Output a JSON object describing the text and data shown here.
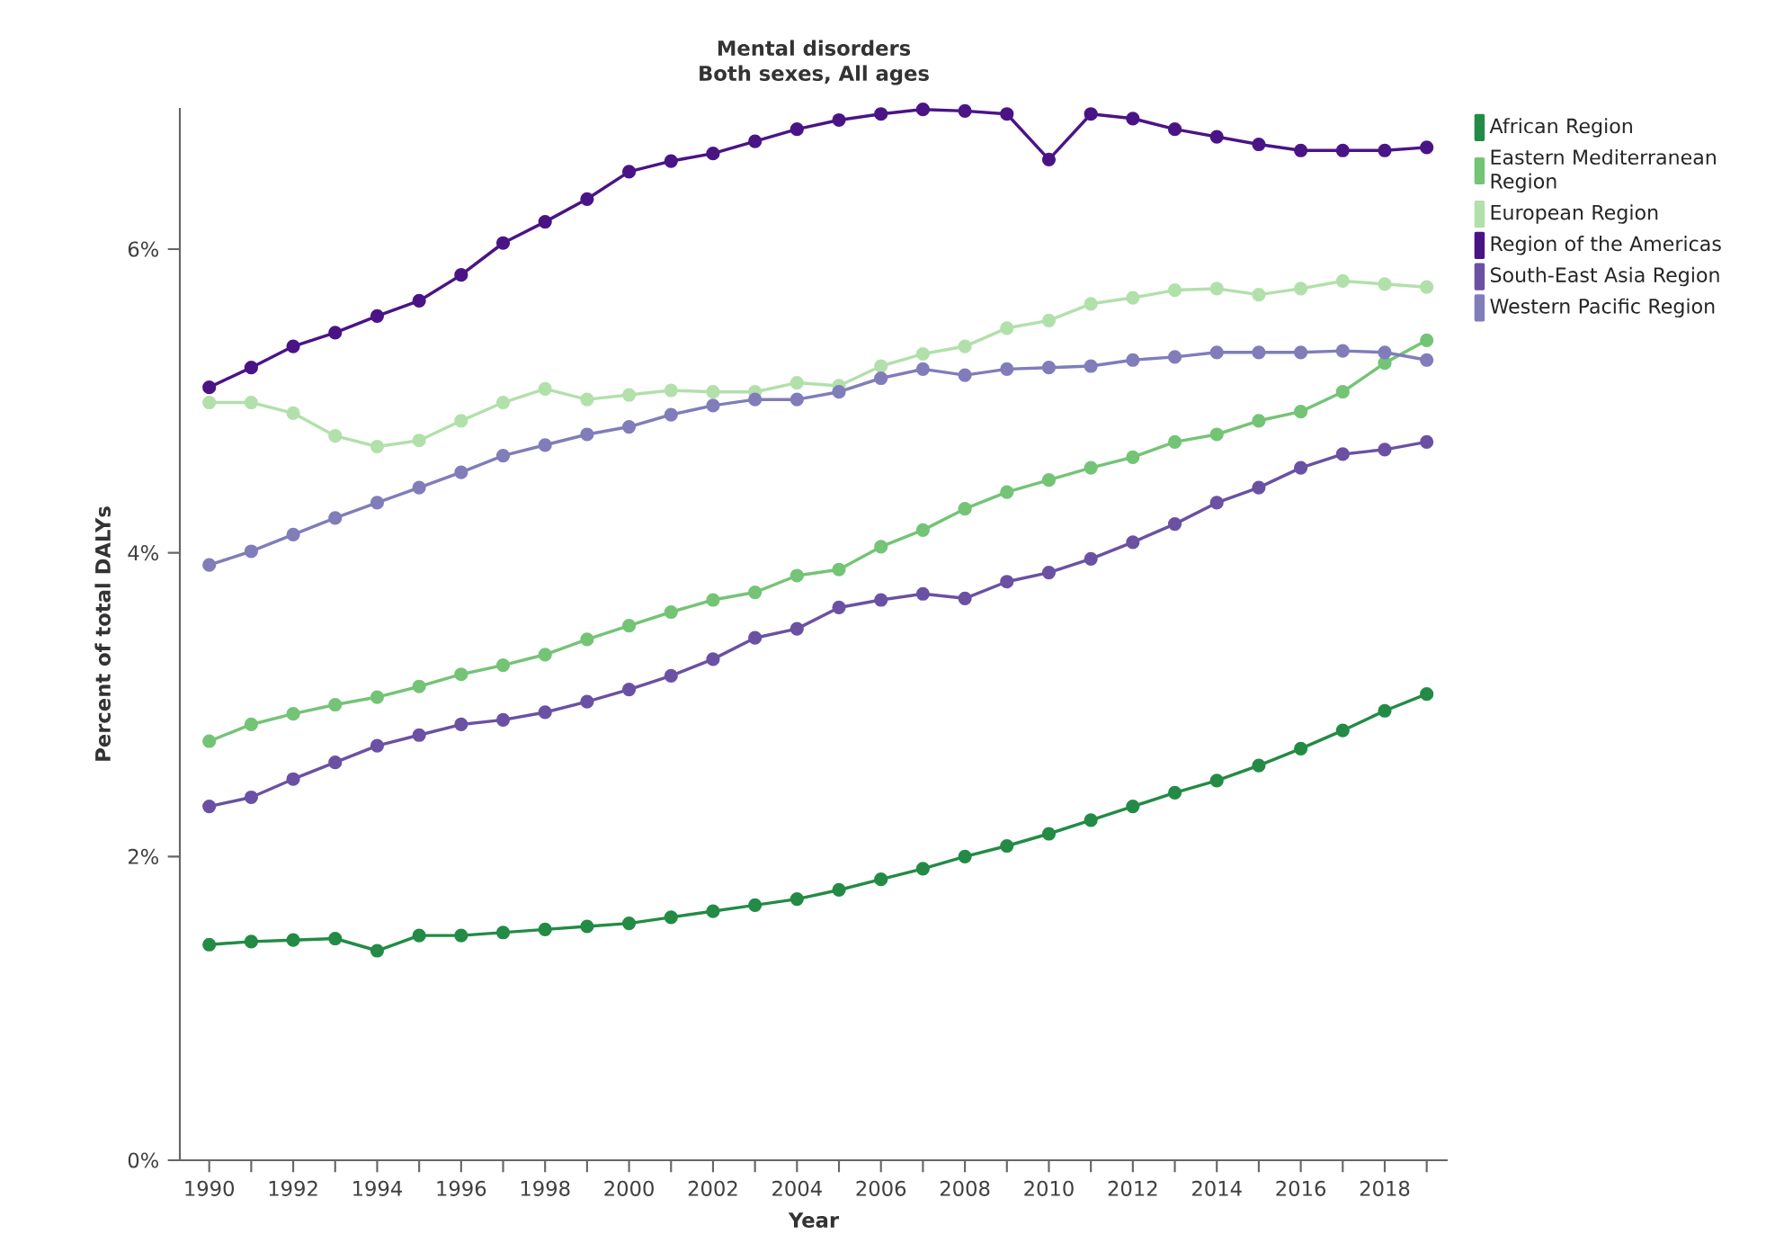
{
  "chart_data": {
    "type": "line",
    "title": "Mental disorders",
    "subtitle": "Both sexes, All ages",
    "xlabel": "Year",
    "ylabel": "Percent of total DALYs",
    "x": [
      1990,
      1991,
      1992,
      1993,
      1994,
      1995,
      1996,
      1997,
      1998,
      1999,
      2000,
      2001,
      2002,
      2003,
      2004,
      2005,
      2006,
      2007,
      2008,
      2009,
      2010,
      2011,
      2012,
      2013,
      2014,
      2015,
      2016,
      2017,
      2018,
      2019
    ],
    "series": [
      {
        "name": "African Region",
        "color": "#238b45",
        "values": [
          1.42,
          1.44,
          1.45,
          1.46,
          1.38,
          1.48,
          1.48,
          1.5,
          1.52,
          1.54,
          1.56,
          1.6,
          1.64,
          1.68,
          1.72,
          1.78,
          1.85,
          1.92,
          2.0,
          2.07,
          2.15,
          2.24,
          2.33,
          2.42,
          2.5,
          2.6,
          2.71,
          2.83,
          2.96,
          3.07
        ]
      },
      {
        "name": "Eastern Mediterranean Region",
        "color": "#74c476",
        "values": [
          2.76,
          2.87,
          2.94,
          3.0,
          3.05,
          3.12,
          3.2,
          3.26,
          3.33,
          3.43,
          3.52,
          3.61,
          3.69,
          3.74,
          3.85,
          3.89,
          4.04,
          4.15,
          4.29,
          4.4,
          4.48,
          4.56,
          4.63,
          4.73,
          4.78,
          4.87,
          4.93,
          5.06,
          5.25,
          5.4
        ]
      },
      {
        "name": "European Region",
        "color": "#b2e0ab",
        "values": [
          4.99,
          4.99,
          4.92,
          4.77,
          4.7,
          4.74,
          4.87,
          4.99,
          5.08,
          5.01,
          5.04,
          5.07,
          5.06,
          5.06,
          5.12,
          5.1,
          5.23,
          5.31,
          5.36,
          5.48,
          5.53,
          5.64,
          5.68,
          5.73,
          5.74,
          5.7,
          5.74,
          5.79,
          5.77,
          5.75
        ]
      },
      {
        "name": "Region of the Americas",
        "color": "#4a1486",
        "values": [
          5.09,
          5.22,
          5.36,
          5.45,
          5.56,
          5.66,
          5.83,
          6.04,
          6.18,
          6.33,
          6.51,
          6.58,
          6.63,
          6.71,
          6.79,
          6.85,
          6.89,
          6.92,
          6.91,
          6.89,
          6.59,
          6.89,
          6.86,
          6.79,
          6.74,
          6.69,
          6.65,
          6.65,
          6.65,
          6.67
        ]
      },
      {
        "name": "South-East Asia Region",
        "color": "#6a51a3",
        "values": [
          2.33,
          2.39,
          2.51,
          2.62,
          2.73,
          2.8,
          2.87,
          2.9,
          2.95,
          3.02,
          3.1,
          3.19,
          3.3,
          3.44,
          3.5,
          3.64,
          3.69,
          3.73,
          3.7,
          3.81,
          3.87,
          3.96,
          4.07,
          4.19,
          4.33,
          4.43,
          4.56,
          4.65,
          4.68,
          4.73
        ]
      },
      {
        "name": "Western Pacific Region",
        "color": "#807dba",
        "values": [
          3.92,
          4.01,
          4.12,
          4.23,
          4.33,
          4.43,
          4.53,
          4.64,
          4.71,
          4.78,
          4.83,
          4.91,
          4.97,
          5.01,
          5.01,
          5.06,
          5.15,
          5.21,
          5.17,
          5.21,
          5.22,
          5.23,
          5.27,
          5.29,
          5.32,
          5.32,
          5.32,
          5.33,
          5.32,
          5.27
        ]
      }
    ],
    "xlim": [
      1989.3,
      2019.5
    ],
    "ylim": [
      0,
      6.93
    ],
    "xticks": [
      1990,
      {
        "value": 1991,
        "label": null
      },
      1992,
      {
        "value": 1993,
        "label": null
      },
      1994,
      {
        "value": 1995,
        "label": null
      },
      1996,
      {
        "value": 1997,
        "label": null
      },
      1998,
      {
        "value": 1999,
        "label": null
      },
      2000,
      {
        "value": 2001,
        "label": null
      },
      2002,
      {
        "value": 2003,
        "label": null
      },
      2004,
      {
        "value": 2005,
        "label": null
      },
      2006,
      {
        "value": 2007,
        "label": null
      },
      2008,
      {
        "value": 2009,
        "label": null
      },
      2010,
      {
        "value": 2011,
        "label": null
      },
      2012,
      {
        "value": 2013,
        "label": null
      },
      2014,
      {
        "value": 2015,
        "label": null
      },
      2016,
      {
        "value": 2017,
        "label": null
      },
      2018,
      {
        "value": 2019,
        "label": null
      }
    ],
    "yticks": [
      {
        "value": 0,
        "label": "0%"
      },
      {
        "value": 2,
        "label": "2%"
      },
      {
        "value": 4,
        "label": "4%"
      },
      {
        "value": 6,
        "label": "6%"
      }
    ],
    "grid": false,
    "legend": "top right",
    "marker": "circle",
    "line_style": "solid"
  }
}
